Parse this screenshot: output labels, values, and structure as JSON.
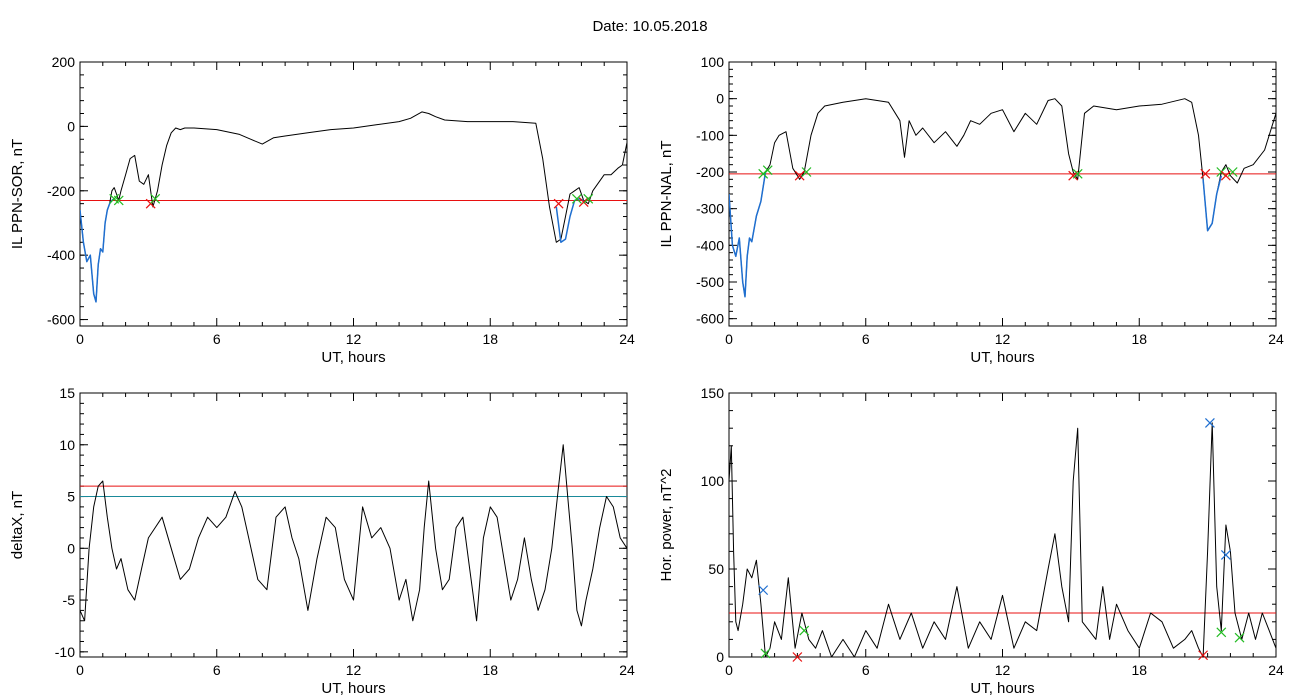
{
  "page_title": "Date:  10.05.2018",
  "colors": {
    "main": "#000000",
    "threshold": "#e81010",
    "secondary": "#1f6fd0",
    "level2": "#1a8a9a",
    "green_marker": "#22bb22"
  },
  "chart_data": [
    {
      "type": "line",
      "name": "panel-il-ppn-sor",
      "xlabel": "UT, hours",
      "ylabel": "IL PPN-SOR, nT",
      "xlim": [
        0,
        24
      ],
      "ylim": [
        -620,
        200
      ],
      "xticks": [
        0,
        6,
        12,
        18,
        24
      ],
      "xtick_labels": [
        "0",
        "6",
        "12",
        "18",
        "24"
      ],
      "yticks": [
        -600,
        -400,
        -200,
        0,
        200
      ],
      "ytick_labels": [
        "-600",
        "-400",
        "-200",
        "0",
        "200"
      ],
      "series": [
        {
          "color": "#000000",
          "width": 1,
          "x": [
            0,
            0.15,
            0.3,
            0.45,
            0.6,
            0.7,
            0.8,
            0.9,
            1.0,
            1.1,
            1.2,
            1.3,
            1.4,
            1.5,
            1.6,
            1.7,
            1.8,
            2.0,
            2.2,
            2.4,
            2.6,
            2.8,
            3.0,
            3.2,
            3.4,
            3.6,
            3.8,
            4.0,
            4.2,
            4.4,
            4.6,
            5,
            6,
            7,
            7.5,
            8,
            8.5,
            9,
            10,
            11,
            12,
            13,
            14,
            14.5,
            15,
            15.3,
            15.6,
            16,
            17,
            18,
            19,
            20,
            20.3,
            20.6,
            20.9,
            21.1,
            21.3,
            21.5,
            21.7,
            21.9,
            22.1,
            22.3,
            22.5,
            22.8,
            23.0,
            23.3,
            23.6,
            23.8,
            24.0
          ],
          "y": [
            -260,
            -360,
            -420,
            -400,
            -520,
            -545,
            -430,
            -380,
            -390,
            -300,
            -260,
            -240,
            -200,
            -190,
            -210,
            -230,
            -200,
            -150,
            -100,
            -90,
            -170,
            -180,
            -150,
            -250,
            -200,
            -120,
            -60,
            -20,
            -5,
            -10,
            -5,
            -5,
            -10,
            -25,
            -40,
            -55,
            -35,
            -30,
            -20,
            -10,
            -5,
            5,
            15,
            25,
            45,
            40,
            30,
            20,
            15,
            15,
            15,
            10,
            -100,
            -250,
            -360,
            -350,
            -280,
            -210,
            -200,
            -190,
            -230,
            -240,
            -200,
            -170,
            -150,
            -150,
            -130,
            -120,
            -50
          ]
        },
        {
          "color": "#1f6fd0",
          "width": 1.5,
          "x": [
            0,
            0.15,
            0.3,
            0.45,
            0.6,
            0.7,
            0.8,
            0.9,
            1.0,
            1.1,
            1.2,
            1.3,
            1.4,
            1.5
          ],
          "y": [
            -260,
            -360,
            -420,
            -400,
            -520,
            -545,
            -430,
            -380,
            -390,
            -300,
            -260,
            -240,
            -230,
            -225
          ]
        },
        {
          "color": "#1f6fd0",
          "width": 1.5,
          "x": [
            20.9,
            21.1,
            21.3,
            21.5,
            21.7,
            21.9,
            22.1
          ],
          "y": [
            -250,
            -360,
            -350,
            -280,
            -230,
            -225,
            -230
          ]
        }
      ],
      "hlines": [
        {
          "y": -230,
          "color": "#e81010"
        }
      ],
      "markers": [
        {
          "x": 1.5,
          "y": -225,
          "color": "#22bb22"
        },
        {
          "x": 1.7,
          "y": -230,
          "color": "#22bb22"
        },
        {
          "x": 3.1,
          "y": -240,
          "color": "#e81010"
        },
        {
          "x": 3.3,
          "y": -225,
          "color": "#22bb22"
        },
        {
          "x": 21.0,
          "y": -240,
          "color": "#e81010"
        },
        {
          "x": 21.8,
          "y": -225,
          "color": "#22bb22"
        },
        {
          "x": 22.1,
          "y": -235,
          "color": "#e81010"
        },
        {
          "x": 22.3,
          "y": -225,
          "color": "#22bb22"
        }
      ]
    },
    {
      "type": "line",
      "name": "panel-il-ppn-nal",
      "xlabel": "UT, hours",
      "ylabel": "IL PPN-NAL, nT",
      "xlim": [
        0,
        24
      ],
      "ylim": [
        -620,
        100
      ],
      "xticks": [
        0,
        6,
        12,
        18,
        24
      ],
      "xtick_labels": [
        "0",
        "6",
        "12",
        "18",
        "24"
      ],
      "yticks": [
        -600,
        -500,
        -400,
        -300,
        -200,
        -100,
        0,
        100
      ],
      "ytick_labels": [
        "-600",
        "-500",
        "-400",
        "-300",
        "-200",
        "-100",
        "0",
        "100"
      ],
      "series": [
        {
          "color": "#000000",
          "width": 1,
          "x": [
            0,
            0.15,
            0.3,
            0.45,
            0.6,
            0.7,
            0.8,
            0.9,
            1.0,
            1.2,
            1.4,
            1.6,
            1.8,
            2.0,
            2.2,
            2.5,
            2.8,
            3.1,
            3.3,
            3.6,
            3.9,
            4.2,
            5,
            6,
            7,
            7.5,
            7.7,
            7.9,
            8.2,
            8.5,
            9,
            9.5,
            10,
            10.3,
            10.6,
            11,
            11.5,
            12,
            12.5,
            13,
            13.5,
            14,
            14.3,
            14.6,
            14.9,
            15.1,
            15.3,
            15.6,
            16,
            17,
            18,
            19,
            20,
            20.3,
            20.6,
            20.8,
            21.0,
            21.2,
            21.4,
            21.6,
            21.8,
            22.0,
            22.3,
            22.6,
            23.0,
            23.5,
            24.0
          ],
          "y": [
            -260,
            -400,
            -430,
            -380,
            -500,
            -540,
            -430,
            -380,
            -390,
            -320,
            -280,
            -200,
            -180,
            -120,
            -100,
            -90,
            -190,
            -220,
            -200,
            -100,
            -40,
            -20,
            -10,
            0,
            -10,
            -60,
            -160,
            -60,
            -100,
            -80,
            -120,
            -90,
            -130,
            -100,
            -60,
            -70,
            -40,
            -30,
            -90,
            -40,
            -70,
            -5,
            0,
            -20,
            -150,
            -200,
            -220,
            -40,
            -20,
            -30,
            -20,
            -15,
            0,
            -10,
            -100,
            -220,
            -360,
            -340,
            -260,
            -200,
            -180,
            -210,
            -230,
            -190,
            -180,
            -140,
            -40
          ]
        },
        {
          "color": "#1f6fd0",
          "width": 1.5,
          "x": [
            0,
            0.15,
            0.3,
            0.45,
            0.6,
            0.7,
            0.8,
            0.9,
            1.0,
            1.2,
            1.4,
            1.6
          ],
          "y": [
            -260,
            -400,
            -430,
            -380,
            -500,
            -540,
            -430,
            -380,
            -390,
            -320,
            -280,
            -200
          ]
        },
        {
          "color": "#1f6fd0",
          "width": 1.5,
          "x": [
            20.8,
            21.0,
            21.2,
            21.4,
            21.6
          ],
          "y": [
            -220,
            -360,
            -340,
            -260,
            -210
          ]
        }
      ],
      "hlines": [
        {
          "y": -205,
          "color": "#e81010"
        }
      ],
      "markers": [
        {
          "x": 1.5,
          "y": -205,
          "color": "#22bb22"
        },
        {
          "x": 1.7,
          "y": -195,
          "color": "#22bb22"
        },
        {
          "x": 3.1,
          "y": -210,
          "color": "#e81010"
        },
        {
          "x": 3.4,
          "y": -200,
          "color": "#22bb22"
        },
        {
          "x": 15.1,
          "y": -210,
          "color": "#e81010"
        },
        {
          "x": 15.3,
          "y": -205,
          "color": "#22bb22"
        },
        {
          "x": 20.9,
          "y": -205,
          "color": "#e81010"
        },
        {
          "x": 21.6,
          "y": -200,
          "color": "#22bb22"
        },
        {
          "x": 21.8,
          "y": -210,
          "color": "#e81010"
        },
        {
          "x": 22.1,
          "y": -200,
          "color": "#22bb22"
        }
      ]
    },
    {
      "type": "line",
      "name": "panel-deltax",
      "xlabel": "UT, hours",
      "ylabel": "deltaX, nT",
      "xlim": [
        0,
        24
      ],
      "ylim": [
        -10.5,
        15
      ],
      "xticks": [
        0,
        6,
        12,
        18,
        24
      ],
      "xtick_labels": [
        "0",
        "6",
        "12",
        "18",
        "24"
      ],
      "yticks": [
        -10,
        -5,
        0,
        5,
        10,
        15
      ],
      "ytick_labels": [
        "-10",
        "-5",
        "0",
        "5",
        "10",
        "15"
      ],
      "series": [
        {
          "color": "#000000",
          "width": 1,
          "x": [
            0,
            0.2,
            0.4,
            0.6,
            0.8,
            1.0,
            1.2,
            1.4,
            1.6,
            1.8,
            2.1,
            2.4,
            2.7,
            3.0,
            3.3,
            3.6,
            4.0,
            4.4,
            4.8,
            5.2,
            5.6,
            6.0,
            6.4,
            6.8,
            7.1,
            7.4,
            7.8,
            8.2,
            8.6,
            9.0,
            9.3,
            9.6,
            10.0,
            10.4,
            10.8,
            11.2,
            11.6,
            12.0,
            12.4,
            12.8,
            13.2,
            13.6,
            14.0,
            14.3,
            14.6,
            14.9,
            15.1,
            15.3,
            15.6,
            15.9,
            16.2,
            16.5,
            16.8,
            17.1,
            17.4,
            17.7,
            18.0,
            18.3,
            18.6,
            18.9,
            19.2,
            19.5,
            19.8,
            20.1,
            20.4,
            20.7,
            21.0,
            21.2,
            21.4,
            21.6,
            21.8,
            22.0,
            22.2,
            22.5,
            22.8,
            23.1,
            23.4,
            23.7,
            24.0
          ],
          "y": [
            -6,
            -7,
            0,
            4,
            6,
            6.5,
            3,
            0,
            -2,
            -1,
            -4,
            -5,
            -2,
            1,
            2,
            3,
            0,
            -3,
            -2,
            1,
            3,
            2,
            3,
            5.5,
            4,
            1,
            -3,
            -4,
            3,
            4,
            1,
            -1,
            -6,
            -1,
            3,
            2,
            -3,
            -5,
            4,
            1,
            2,
            0,
            -5,
            -3,
            -7,
            -4,
            2,
            6.5,
            0,
            -4,
            -3,
            2,
            3,
            -2,
            -7,
            1,
            4,
            3,
            -1,
            -5,
            -3,
            1,
            -3,
            -6,
            -4,
            0,
            6,
            10,
            5,
            0,
            -6,
            -7.5,
            -5,
            -2,
            2,
            5,
            4,
            1,
            0
          ]
        }
      ],
      "hlines": [
        {
          "y": 6,
          "color": "#e81010"
        },
        {
          "y": 5,
          "color": "#1a8a9a"
        }
      ],
      "markers": []
    },
    {
      "type": "line",
      "name": "panel-hor-power",
      "xlabel": "UT, hours",
      "ylabel": "Hor. power, nT^2",
      "xlim": [
        0,
        24
      ],
      "ylim": [
        0,
        150
      ],
      "xticks": [
        0,
        6,
        12,
        18,
        24
      ],
      "xtick_labels": [
        "0",
        "6",
        "12",
        "18",
        "24"
      ],
      "yticks": [
        0,
        50,
        100,
        150
      ],
      "ytick_labels": [
        "0",
        "50",
        "100",
        "150"
      ],
      "series": [
        {
          "color": "#000000",
          "width": 1,
          "x": [
            0,
            0.1,
            0.2,
            0.3,
            0.4,
            0.6,
            0.8,
            1.0,
            1.2,
            1.4,
            1.6,
            1.8,
            2.0,
            2.3,
            2.6,
            2.9,
            3.2,
            3.5,
            3.8,
            4.1,
            4.5,
            5,
            5.5,
            6,
            6.5,
            7,
            7.5,
            8,
            8.5,
            9,
            9.5,
            10,
            10.5,
            11,
            11.5,
            12,
            12.5,
            13,
            13.5,
            14,
            14.3,
            14.6,
            14.9,
            15.1,
            15.3,
            15.5,
            15.8,
            16.1,
            16.4,
            16.7,
            17,
            17.5,
            18,
            18.5,
            19,
            19.5,
            20,
            20.3,
            20.6,
            20.8,
            21.0,
            21.2,
            21.4,
            21.6,
            21.8,
            22.0,
            22.2,
            22.5,
            22.8,
            23.1,
            23.4,
            23.7,
            24.0
          ],
          "y": [
            100,
            120,
            60,
            20,
            15,
            30,
            50,
            45,
            55,
            30,
            0,
            5,
            20,
            10,
            45,
            5,
            25,
            10,
            5,
            15,
            0,
            10,
            0,
            15,
            5,
            30,
            10,
            25,
            5,
            20,
            10,
            40,
            5,
            20,
            10,
            35,
            5,
            20,
            15,
            50,
            70,
            40,
            20,
            100,
            130,
            20,
            15,
            10,
            40,
            10,
            30,
            15,
            5,
            25,
            20,
            5,
            10,
            15,
            5,
            0,
            60,
            133,
            40,
            15,
            75,
            60,
            25,
            10,
            25,
            10,
            25,
            15,
            5
          ]
        }
      ],
      "hlines": [
        {
          "y": 25,
          "color": "#e81010"
        }
      ],
      "markers": [
        {
          "x": 1.5,
          "y": 38,
          "color": "#1f6fd0"
        },
        {
          "x": 1.6,
          "y": 2,
          "color": "#22bb22"
        },
        {
          "x": 3.0,
          "y": 0,
          "color": "#e81010"
        },
        {
          "x": 3.3,
          "y": 15,
          "color": "#22bb22"
        },
        {
          "x": 20.8,
          "y": 1,
          "color": "#e81010"
        },
        {
          "x": 21.1,
          "y": 133,
          "color": "#1f6fd0"
        },
        {
          "x": 21.6,
          "y": 14,
          "color": "#22bb22"
        },
        {
          "x": 21.8,
          "y": 58,
          "color": "#1f6fd0"
        },
        {
          "x": 22.4,
          "y": 11,
          "color": "#22bb22"
        }
      ]
    }
  ]
}
